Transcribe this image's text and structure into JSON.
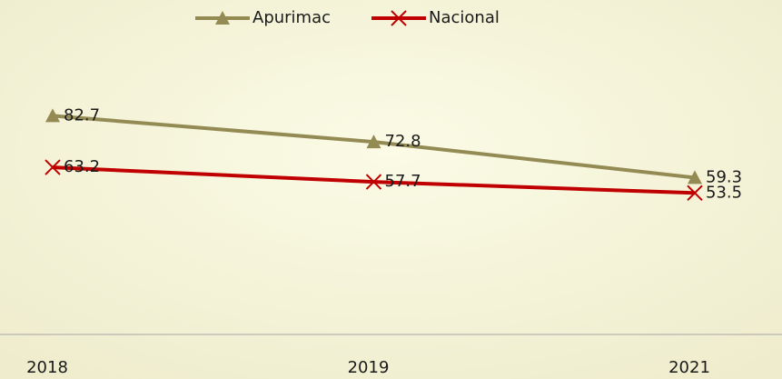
{
  "chart_data": {
    "type": "line",
    "categories": [
      "2018",
      "2019",
      "2021"
    ],
    "series": [
      {
        "name": "Apurimac",
        "color": "#948a54",
        "marker": "triangle",
        "values": [
          82.7,
          72.8,
          59.3
        ]
      },
      {
        "name": "Nacional",
        "color": "#c00000",
        "marker": "x",
        "values": [
          63.2,
          57.7,
          53.5
        ]
      }
    ],
    "ylim": [
      0,
      100
    ],
    "legend": "top"
  }
}
